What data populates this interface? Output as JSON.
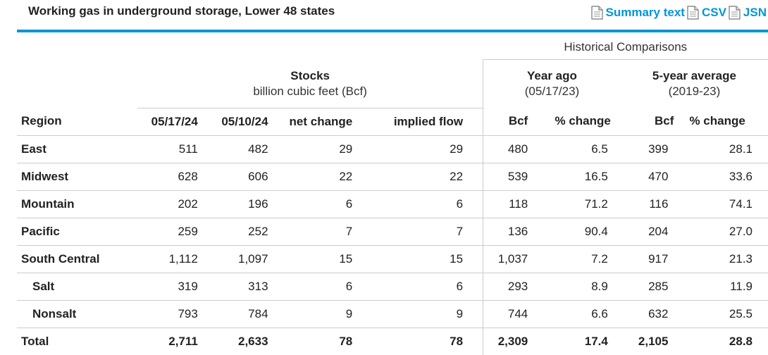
{
  "header": {
    "title": "Working gas in underground storage, Lower 48 states",
    "links": [
      {
        "label": "Summary text",
        "icon": "document-icon"
      },
      {
        "label": "CSV",
        "icon": "document-icon"
      },
      {
        "label": "JSN",
        "icon": "document-icon"
      }
    ],
    "accent_color": "#0096d7"
  },
  "table": {
    "historical_header": "Historical Comparisons",
    "stocks_header": {
      "title": "Stocks",
      "subtitle": "billion cubic feet (Bcf)"
    },
    "year_ago_header": {
      "title": "Year ago",
      "subtitle": "(05/17/23)"
    },
    "five_year_header": {
      "title": "5-year average",
      "subtitle": "(2019-23)"
    },
    "columns": [
      "Region",
      "05/17/24",
      "05/10/24",
      "net change",
      "implied flow",
      "Bcf",
      "% change",
      "Bcf",
      "% change"
    ],
    "rows": [
      {
        "region": "East",
        "indent": false,
        "cells": [
          "511",
          "482",
          "29",
          "29",
          "480",
          "6.5",
          "399",
          "28.1"
        ]
      },
      {
        "region": "Midwest",
        "indent": false,
        "cells": [
          "628",
          "606",
          "22",
          "22",
          "539",
          "16.5",
          "470",
          "33.6"
        ]
      },
      {
        "region": "Mountain",
        "indent": false,
        "cells": [
          "202",
          "196",
          "6",
          "6",
          "118",
          "71.2",
          "116",
          "74.1"
        ]
      },
      {
        "region": "Pacific",
        "indent": false,
        "cells": [
          "259",
          "252",
          "7",
          "7",
          "136",
          "90.4",
          "204",
          "27.0"
        ]
      },
      {
        "region": "South Central",
        "indent": false,
        "cells": [
          "1,112",
          "1,097",
          "15",
          "15",
          "1,037",
          "7.2",
          "917",
          "21.3"
        ]
      },
      {
        "region": "Salt",
        "indent": true,
        "cells": [
          "319",
          "313",
          "6",
          "6",
          "293",
          "8.9",
          "285",
          "11.9"
        ]
      },
      {
        "region": "Nonsalt",
        "indent": true,
        "cells": [
          "793",
          "784",
          "9",
          "9",
          "744",
          "6.6",
          "632",
          "25.5"
        ]
      }
    ],
    "total": {
      "region": "Total",
      "cells": [
        "2,711",
        "2,633",
        "78",
        "78",
        "2,309",
        "17.4",
        "2,105",
        "28.8"
      ]
    }
  }
}
